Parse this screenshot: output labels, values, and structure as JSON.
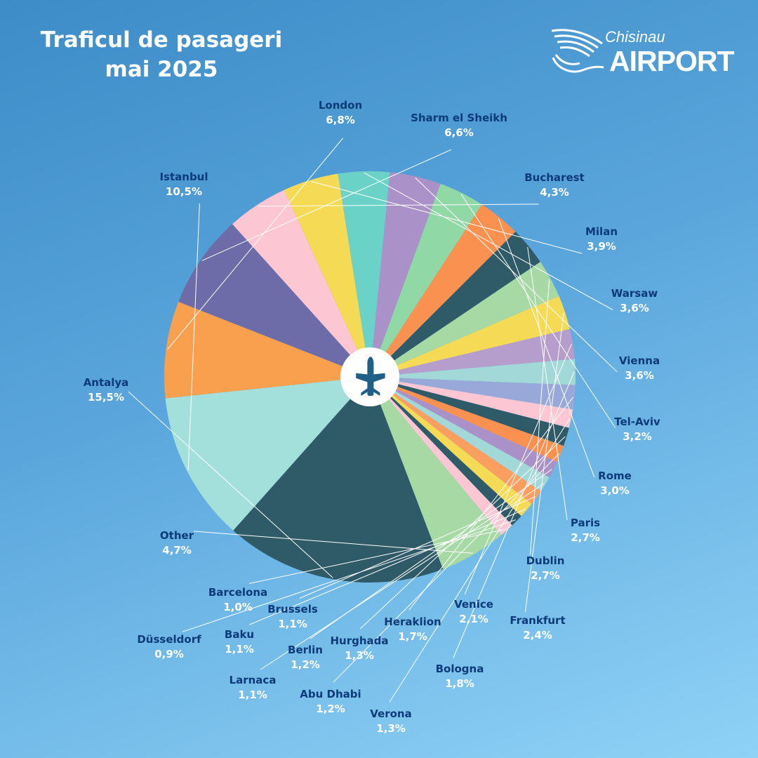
{
  "header": {
    "title_line1": "Traficul de pasageri",
    "title_line2": "mai 2025"
  },
  "logo": {
    "small": "Chisinau",
    "big": "AIRPORT"
  },
  "colors": {
    "label_text": "#0d3a78",
    "leader_line": "#ffffff",
    "center_bg": "#ffffff",
    "plane": "#1f5f88"
  },
  "chart_data": {
    "type": "pie",
    "title": "Traficul de pasageri mai 2025",
    "unit": "%",
    "slices": [
      {
        "label": "London",
        "value": 6.8,
        "display": "6,8%",
        "color": "#f9a04e"
      },
      {
        "label": "Sharm el Sheikh",
        "value": 6.6,
        "display": "6,6%",
        "color": "#6d6ca8"
      },
      {
        "label": "Bucharest",
        "value": 4.3,
        "display": "4,3%",
        "color": "#fcc7d2"
      },
      {
        "label": "Milan",
        "value": 3.9,
        "display": "3,9%",
        "color": "#f5da55"
      },
      {
        "label": "Warsaw",
        "value": 3.6,
        "display": "3,6%",
        "color": "#6bd2c8"
      },
      {
        "label": "Vienna",
        "value": 3.6,
        "display": "3,6%",
        "color": "#aa92c8"
      },
      {
        "label": "Tel-Aviv",
        "value": 3.2,
        "display": "3,2%",
        "color": "#90d8a5"
      },
      {
        "label": "Rome",
        "value": 3.0,
        "display": "3,0%",
        "color": "#fb9150"
      },
      {
        "label": "Paris",
        "value": 2.7,
        "display": "2,7%",
        "color": "#2f5a68"
      },
      {
        "label": "Dublin",
        "value": 2.7,
        "display": "2,7%",
        "color": "#a7d9a5"
      },
      {
        "label": "Frankfurt",
        "value": 2.4,
        "display": "2,4%",
        "color": "#f5da55"
      },
      {
        "label": "Venice",
        "value": 2.1,
        "display": "2,1%",
        "color": "#b59ecb"
      },
      {
        "label": "Bologna",
        "value": 1.8,
        "display": "1,8%",
        "color": "#a3d8d8"
      },
      {
        "label": "Heraklion",
        "value": 1.7,
        "display": "1,7%",
        "color": "#98a9d9"
      },
      {
        "label": "Verona",
        "value": 1.3,
        "display": "1,3%",
        "color": "#fcc7d2"
      },
      {
        "label": "Hurghada",
        "value": 1.3,
        "display": "1,3%",
        "color": "#2f5a68"
      },
      {
        "label": "Abu Dhabi",
        "value": 1.2,
        "display": "1,2%",
        "color": "#fb9150"
      },
      {
        "label": "Berlin",
        "value": 1.2,
        "display": "1,2%",
        "color": "#aa92c8"
      },
      {
        "label": "Larnaca",
        "value": 1.1,
        "display": "1,1%",
        "color": "#a3d8d8"
      },
      {
        "label": "Brussels",
        "value": 1.1,
        "display": "1,1%",
        "color": "#fb9f60"
      },
      {
        "label": "Baku",
        "value": 1.1,
        "display": "1,1%",
        "color": "#f5da55"
      },
      {
        "label": "Düsseldorf",
        "value": 0.9,
        "display": "0,9%",
        "color": "#2f5a68"
      },
      {
        "label": "Barcelona",
        "value": 1.0,
        "display": "1,0%",
        "color": "#fcc7d2"
      },
      {
        "label": "Other",
        "value": 4.7,
        "display": "4,7%",
        "color": "#a7d9a5"
      },
      {
        "label": "Antalya",
        "value": 15.5,
        "display": "15,5%",
        "color": "#2f5a68"
      },
      {
        "label": "Istanbul",
        "value": 10.5,
        "display": "10,5%",
        "color": "#a3e0dc"
      }
    ]
  }
}
